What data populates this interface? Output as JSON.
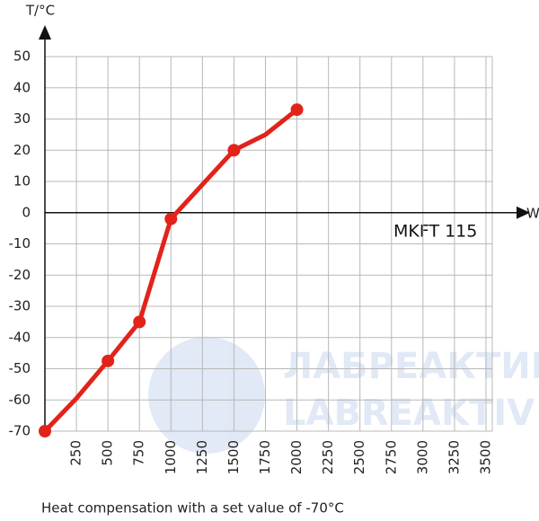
{
  "chart_data": {
    "type": "line",
    "y_label": "T/°C",
    "x_label": "W",
    "annotation": "MKFT 115",
    "caption": "Heat compensation with a set value of -70°C",
    "watermark": [
      "ЛАБРЕАКТИВ",
      "LABREAKTIV"
    ],
    "x": [
      0,
      250,
      500,
      750,
      1000,
      1250,
      1500,
      1750,
      2000
    ],
    "series": [
      {
        "color": "#e2231a",
        "values": [
          -70,
          -59.5,
          -47.5,
          -35,
          -2,
          9,
          20,
          25,
          33
        ],
        "markers": [
          true,
          false,
          true,
          true,
          true,
          false,
          true,
          false,
          true
        ]
      }
    ],
    "xlim": [
      0,
      3550
    ],
    "ylim": [
      -70,
      50
    ],
    "xticks": [
      250,
      500,
      750,
      1000,
      1250,
      1500,
      1750,
      2000,
      2250,
      2500,
      2750,
      3000,
      3250,
      3500
    ],
    "yticks": [
      -70,
      -60,
      -50,
      -40,
      -30,
      -20,
      -10,
      0,
      10,
      20,
      30,
      40,
      50
    ],
    "grid": true
  }
}
